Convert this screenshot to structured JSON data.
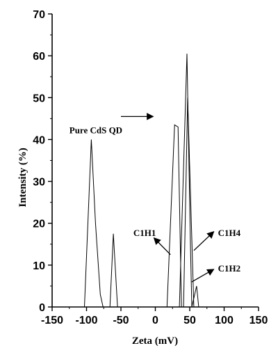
{
  "chart_data": {
    "type": "line",
    "xlabel": "Zeta (mV)",
    "ylabel": "Intensity (%)",
    "xlim": [
      -150,
      150
    ],
    "ylim": [
      0,
      70
    ],
    "xticks": [
      -150,
      -100,
      -50,
      0,
      50,
      100,
      150
    ],
    "yticks": [
      0,
      10,
      20,
      30,
      40,
      50,
      60,
      70
    ],
    "grid": false,
    "legend": "none",
    "series": [
      {
        "key": "pure_cds",
        "points": [
          [
            -103,
            0
          ],
          [
            -93,
            40
          ],
          [
            -87,
            20
          ],
          [
            -80,
            3
          ],
          [
            -76,
            0
          ],
          [
            -66,
            0
          ],
          [
            -61,
            17.5
          ],
          [
            -55,
            0
          ]
        ]
      },
      {
        "key": "c1h1",
        "points": [
          [
            17,
            0
          ],
          [
            28,
            43.5
          ],
          [
            33,
            43
          ],
          [
            38,
            0
          ]
        ]
      },
      {
        "key": "c1h4",
        "points": [
          [
            35,
            0
          ],
          [
            46,
            60.5
          ],
          [
            51,
            15
          ],
          [
            53,
            0
          ]
        ]
      },
      {
        "key": "c1h2",
        "points": [
          [
            41,
            0
          ],
          [
            47,
            50
          ],
          [
            56,
            0
          ]
        ]
      },
      {
        "key": "c1h2_tail",
        "points": [
          [
            53,
            0
          ],
          [
            60,
            5
          ],
          [
            63,
            0
          ]
        ]
      }
    ],
    "annotations": [
      {
        "key": "pure",
        "text": "Pure CdS QD",
        "x": -125,
        "y": 41.5,
        "anchor": "start"
      },
      {
        "key": "c1h1",
        "text": "C1H1",
        "x": -32,
        "y": 17,
        "anchor": "start"
      },
      {
        "key": "c1h4",
        "text": "C1H4",
        "x": 91,
        "y": 17,
        "anchor": "start"
      },
      {
        "key": "c1h2",
        "text": "C1H2",
        "x": 91,
        "y": 8.5,
        "anchor": "start"
      }
    ],
    "arrows": [
      {
        "key": "right",
        "from": [
          -50,
          45.5
        ],
        "to": [
          -3,
          45.5
        ]
      },
      {
        "key": "c1h1",
        "from": [
          22,
          12.5
        ],
        "to": [
          -2,
          16.5
        ]
      },
      {
        "key": "c1h4",
        "from": [
          56,
          13.5
        ],
        "to": [
          85,
          18
        ]
      },
      {
        "key": "c1h2",
        "from": [
          53,
          6
        ],
        "to": [
          85,
          9
        ]
      }
    ]
  }
}
